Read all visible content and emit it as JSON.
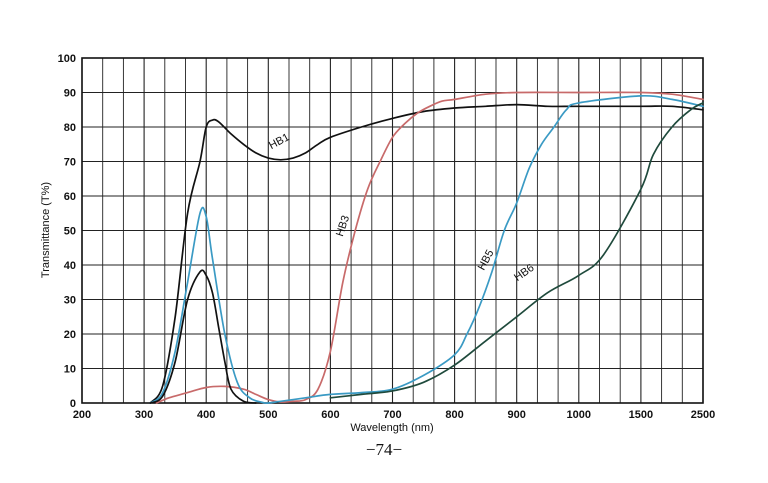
{
  "chart_data": {
    "type": "line",
    "title": "",
    "xlabel": "Wavelength (nm)",
    "ylabel": "Transmittance (T%)",
    "x_tick_labels": [
      "200",
      "300",
      "400",
      "500",
      "600",
      "700",
      "800",
      "900",
      "1000",
      "1500",
      "2500"
    ],
    "x_scale_note": "non-linear: 200-1000 nm in 100 nm steps, then 1500, 2500",
    "ylim": [
      0,
      100
    ],
    "y_ticks": [
      0,
      10,
      20,
      30,
      40,
      50,
      60,
      70,
      80,
      90,
      100
    ],
    "grid": true,
    "series": [
      {
        "name": "HB1",
        "color": "#111111",
        "x": [
          310,
          330,
          350,
          370,
          390,
          400,
          410,
          420,
          440,
          460,
          480,
          500,
          520,
          540,
          560,
          580,
          600,
          650,
          700,
          750,
          800,
          850,
          900,
          950,
          1000,
          1500,
          2000,
          2500
        ],
        "y": [
          0,
          5,
          25,
          55,
          70,
          80,
          82,
          81.5,
          78,
          75,
          72.5,
          71,
          70.5,
          71,
          72.5,
          75,
          77,
          80,
          82.5,
          84.5,
          85.5,
          86,
          86.5,
          86,
          86,
          86,
          86,
          85
        ]
      },
      {
        "name": "HB3",
        "color": "#c86a6a",
        "x": [
          320,
          340,
          370,
          400,
          430,
          460,
          480,
          500,
          520,
          540,
          560,
          580,
          600,
          620,
          640,
          660,
          680,
          700,
          720,
          740,
          760,
          780,
          800,
          850,
          900,
          1000,
          1500,
          2000,
          2500
        ],
        "y": [
          0,
          1.5,
          3,
          4.5,
          4.8,
          4,
          2.5,
          1,
          0.3,
          0.5,
          1,
          4,
          15,
          35,
          50,
          62,
          70,
          77,
          81,
          84,
          86,
          87.5,
          88,
          89.5,
          90,
          90,
          90,
          89.5,
          88
        ]
      },
      {
        "name": "HB5",
        "color": "#3a9ac4",
        "x": [
          310,
          330,
          350,
          370,
          390,
          400,
          410,
          430,
          450,
          470,
          490,
          500,
          520,
          560,
          600,
          650,
          700,
          750,
          800,
          820,
          840,
          860,
          880,
          900,
          920,
          940,
          960,
          980,
          1000,
          1500,
          2000,
          2500
        ],
        "y": [
          0,
          3,
          15,
          35,
          55,
          54,
          42,
          20,
          6,
          1.5,
          0.2,
          0,
          0.5,
          1.5,
          2.5,
          3,
          4,
          8,
          14,
          20,
          28,
          38,
          50,
          58,
          68,
          75,
          80,
          85,
          87,
          89,
          88,
          86
        ]
      },
      {
        "name": "HB6",
        "color": "#1f4a3c",
        "x": [
          600,
          650,
          700,
          750,
          800,
          850,
          900,
          950,
          1000,
          1200,
          1500,
          1700,
          2000,
          2300,
          2500
        ],
        "y": [
          1.5,
          2.5,
          3.5,
          6,
          11,
          18,
          25,
          32,
          37,
          43,
          62,
          72,
          80,
          85,
          87
        ]
      },
      {
        "name": "",
        "color": "#111111",
        "x": [
          310,
          330,
          350,
          370,
          390,
          400,
          410,
          420,
          430,
          440,
          460,
          480
        ],
        "y": [
          0,
          2,
          12,
          30,
          38,
          37,
          32,
          22,
          12,
          4,
          0.5,
          0
        ]
      }
    ]
  },
  "page_number": "−74−"
}
